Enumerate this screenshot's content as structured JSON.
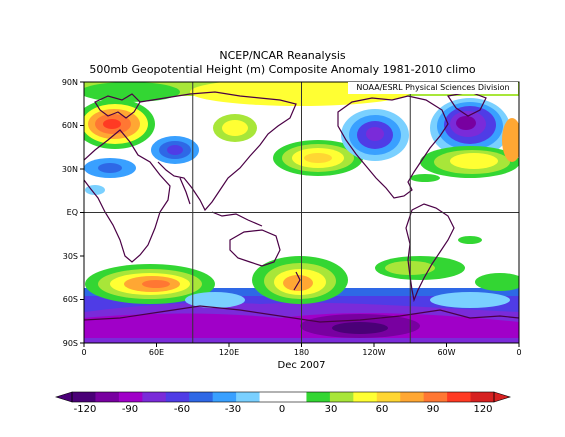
{
  "header": {
    "title": "NCEP/NCAR Reanalysis",
    "subtitle": "500mb Geopotential Height (m) Composite Anomaly 1981-2010 climo"
  },
  "map": {
    "credit": "NOAA/ESRL Physical Sciences Division",
    "date_label": "Dec 2007",
    "lat_labels": [
      "90N",
      "60N",
      "30N",
      "EQ",
      "30S",
      "60S",
      "90S"
    ],
    "lon_labels": [
      "0",
      "60E",
      "120E",
      "180",
      "120W",
      "60W",
      "0"
    ]
  },
  "colorbar": {
    "ticks": [
      "-120",
      "-90",
      "-60",
      "-30",
      "0",
      "30",
      "60",
      "90",
      "120"
    ],
    "colors": [
      "#4a0077",
      "#7800a0",
      "#a000c8",
      "#7a2bd9",
      "#4f3ce6",
      "#2e68e6",
      "#39a0ff",
      "#7ad0ff",
      "#ffffff",
      "#ffffff",
      "#33d633",
      "#a8e639",
      "#ffff33",
      "#ffd633",
      "#ffa733",
      "#ff7733",
      "#ff3a23",
      "#d62020"
    ]
  }
}
